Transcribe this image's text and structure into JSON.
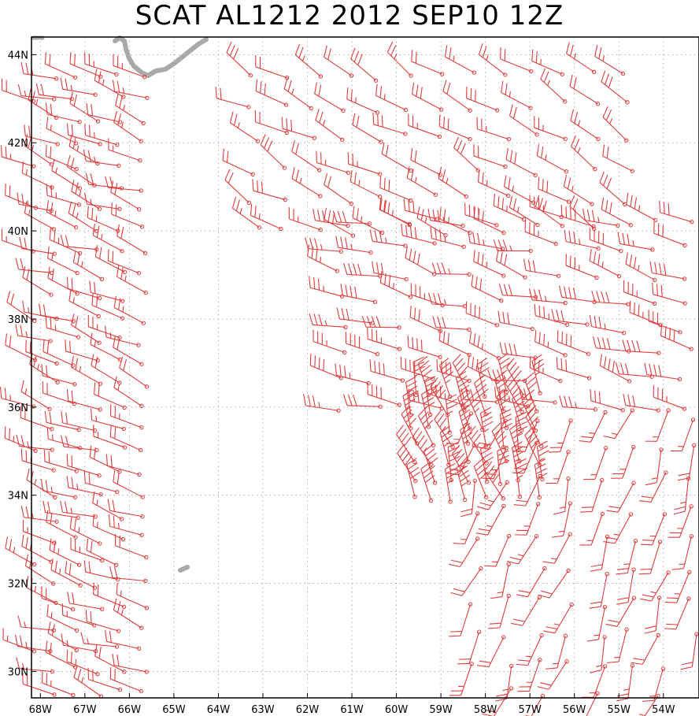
{
  "title": "SCAT AL1212 2012 SEP10 12Z",
  "colors": {
    "barb": "#e03c3c",
    "land": "#a9a9a9",
    "grid": "#9a9a9a",
    "frame": "#000000"
  },
  "chart_data": {
    "type": "scatter",
    "description_kind": "wind-barb map",
    "lon_range": [
      -68.2,
      -53.2
    ],
    "lat_range": [
      29.4,
      44.4
    ],
    "lon_ticks": [
      -68,
      -67,
      -66,
      -65,
      -64,
      -63,
      -62,
      -61,
      -60,
      -59,
      -58,
      -57,
      -56,
      -55,
      -54
    ],
    "lat_ticks": [
      30,
      32,
      34,
      36,
      38,
      40,
      42,
      44
    ],
    "lon_labels": [
      "68W",
      "67W",
      "66W",
      "65W",
      "64W",
      "63W",
      "62W",
      "61W",
      "60W",
      "59W",
      "58W",
      "57W",
      "56W",
      "55W",
      "54W"
    ],
    "lat_labels": [
      "30N",
      "32N",
      "34N",
      "36N",
      "38N",
      "40N",
      "42N",
      "44N"
    ],
    "grid": "dotted",
    "swaths": [
      {
        "name": "west swath",
        "lon_range": [
          -68.2,
          -65.3
        ],
        "lat_range": [
          29.5,
          43.5
        ],
        "step_deg": [
          0.5,
          0.5
        ],
        "direction_deg": 290,
        "speed_kt": 20
      },
      {
        "name": "north arc",
        "lon_range": [
          -63.2,
          -54.4
        ],
        "lat_range": [
          40.0,
          44.0
        ],
        "step_deg": [
          0.7,
          0.7
        ],
        "direction_deg": 300,
        "speed_kt": 25
      },
      {
        "name": "central arc",
        "lon_range": [
          -61.2,
          -53.4
        ],
        "lat_range": [
          36.0,
          40.2
        ],
        "step_deg": [
          0.7,
          0.6
        ],
        "direction_deg": 285,
        "speed_kt": 35
      },
      {
        "name": "inner storm core",
        "lon_range": [
          -59.6,
          -56.8
        ],
        "lat_range": [
          33.9,
          36.5
        ],
        "step_deg": [
          0.4,
          0.4
        ],
        "direction_deg": 340,
        "speed_kt": 40
      },
      {
        "name": "southeast swath",
        "lon_range": [
          -58.2,
          -53.3
        ],
        "lat_range": [
          29.5,
          36.0
        ],
        "step_deg": [
          0.7,
          0.7
        ],
        "direction_deg": 200,
        "speed_kt": 20
      }
    ]
  }
}
